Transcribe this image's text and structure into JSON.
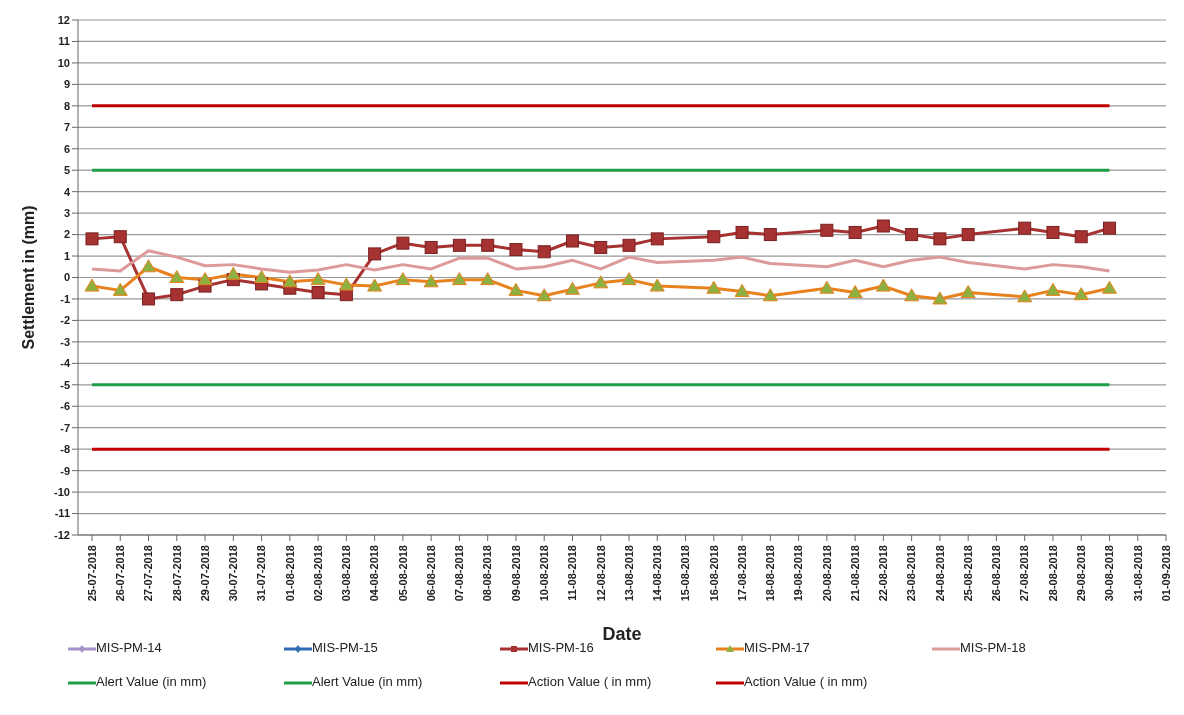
{
  "chart_data": {
    "type": "line",
    "xlabel": "Date",
    "ylabel": "Settlement in (mm)",
    "categories": [
      "25-07-2018",
      "26-07-2018",
      "27-07-2018",
      "28-07-2018",
      "29-07-2018",
      "30-07-2018",
      "31-07-2018",
      "01-08-2018",
      "02-08-2018",
      "03-08-2018",
      "04-08-2018",
      "05-08-2018",
      "06-08-2018",
      "07-08-2018",
      "08-08-2018",
      "09-08-2018",
      "10-08-2018",
      "11-08-2018",
      "12-08-2018",
      "13-08-2018",
      "14-08-2018",
      "15-08-2018",
      "16-08-2018",
      "17-08-2018",
      "18-08-2018",
      "19-08-2018",
      "20-08-2018",
      "21-08-2018",
      "22-08-2018",
      "23-08-2018",
      "24-08-2018",
      "25-08-2018",
      "26-08-2018",
      "27-08-2018",
      "28-08-2018",
      "29-08-2018",
      "30-08-2018",
      "31-08-2018",
      "01-09-2018"
    ],
    "ylim": [
      -12,
      12
    ],
    "yticks": [
      -12,
      -11,
      -10,
      -9,
      -8,
      -7,
      -6,
      -5,
      -4,
      -3,
      -2,
      -1,
      0,
      1,
      2,
      3,
      4,
      5,
      6,
      7,
      8,
      9,
      10,
      11,
      12
    ],
    "grid": "y",
    "legend": "bottom",
    "line_style": "solid",
    "series": [
      {
        "name": "MIS-PM-14",
        "color": "#a393c9",
        "marker": "diamond",
        "values": [
          null,
          null,
          null,
          null,
          null,
          null,
          null,
          null,
          null,
          null,
          null,
          null,
          null,
          null,
          null,
          null,
          null,
          null,
          null,
          null,
          null,
          null,
          null,
          null,
          null,
          null,
          null,
          null,
          null,
          null,
          null,
          null,
          null,
          null,
          null,
          null,
          null,
          null,
          null
        ]
      },
      {
        "name": "MIS-PM-15",
        "color": "#2e6db4",
        "marker": "diamond",
        "values": [
          null,
          null,
          null,
          null,
          null,
          null,
          null,
          null,
          null,
          null,
          null,
          null,
          null,
          null,
          null,
          null,
          null,
          null,
          null,
          null,
          null,
          null,
          null,
          null,
          null,
          null,
          null,
          null,
          null,
          null,
          null,
          null,
          null,
          null,
          null,
          null,
          null,
          null,
          null
        ]
      },
      {
        "name": "MIS-PM-16",
        "color": "#a63232",
        "marker": "square",
        "values": [
          1.8,
          1.9,
          -1.0,
          -0.8,
          -0.4,
          -0.1,
          -0.3,
          -0.5,
          -0.7,
          -0.8,
          1.1,
          1.6,
          1.4,
          1.5,
          1.5,
          1.3,
          1.2,
          1.7,
          1.4,
          1.5,
          1.8,
          null,
          1.9,
          2.1,
          2.0,
          null,
          2.2,
          2.1,
          2.4,
          2.0,
          1.8,
          2.0,
          null,
          2.3,
          2.1,
          1.9,
          2.3,
          null,
          null
        ]
      },
      {
        "name": "MIS-PM-17",
        "color": "#e8821e",
        "marker": "triangle",
        "values": [
          -0.4,
          -0.6,
          0.5,
          0.0,
          -0.1,
          0.15,
          0.0,
          -0.2,
          -0.1,
          -0.35,
          -0.4,
          -0.1,
          -0.2,
          -0.1,
          -0.1,
          -0.6,
          -0.85,
          -0.55,
          -0.25,
          -0.1,
          -0.4,
          null,
          -0.5,
          -0.65,
          -0.85,
          null,
          -0.5,
          -0.7,
          -0.4,
          -0.85,
          -1.0,
          -0.7,
          null,
          -0.9,
          -0.6,
          -0.8,
          -0.5,
          null,
          null
        ]
      },
      {
        "name": "MIS-PM-18",
        "color": "#dc9a9a",
        "marker": "none",
        "values": [
          0.4,
          0.3,
          1.25,
          0.95,
          0.55,
          0.6,
          0.4,
          0.25,
          0.35,
          0.6,
          0.35,
          0.6,
          0.4,
          0.9,
          0.9,
          0.4,
          0.5,
          0.8,
          0.4,
          0.95,
          0.7,
          null,
          0.8,
          0.95,
          0.65,
          null,
          0.5,
          0.8,
          0.5,
          0.8,
          0.95,
          0.7,
          null,
          0.4,
          0.6,
          0.5,
          0.3,
          null,
          null
        ]
      },
      {
        "name": "Alert Value (in mm)",
        "color": "#1f9e4a",
        "marker": "none",
        "values": [
          5,
          5,
          5,
          5,
          5,
          5,
          5,
          5,
          5,
          5,
          5,
          5,
          5,
          5,
          5,
          5,
          5,
          5,
          5,
          5,
          5,
          5,
          5,
          5,
          5,
          5,
          5,
          5,
          5,
          5,
          5,
          5,
          5,
          5,
          5,
          5,
          5,
          null,
          null
        ]
      },
      {
        "name": "Alert Value (in mm)",
        "color": "#1f9e4a",
        "marker": "none",
        "values": [
          -5,
          -5,
          -5,
          -5,
          -5,
          -5,
          -5,
          -5,
          -5,
          -5,
          -5,
          -5,
          -5,
          -5,
          -5,
          -5,
          -5,
          -5,
          -5,
          -5,
          -5,
          -5,
          -5,
          -5,
          -5,
          -5,
          -5,
          -5,
          -5,
          -5,
          -5,
          -5,
          -5,
          -5,
          -5,
          -5,
          -5,
          null,
          null
        ]
      },
      {
        "name": "Action Value ( in mm)",
        "color": "#c00000",
        "marker": "none",
        "values": [
          8,
          8,
          8,
          8,
          8,
          8,
          8,
          8,
          8,
          8,
          8,
          8,
          8,
          8,
          8,
          8,
          8,
          8,
          8,
          8,
          8,
          8,
          8,
          8,
          8,
          8,
          8,
          8,
          8,
          8,
          8,
          8,
          8,
          8,
          8,
          8,
          8,
          null,
          null
        ]
      },
      {
        "name": "Action Value ( in mm)",
        "color": "#c00000",
        "marker": "none",
        "values": [
          -8,
          -8,
          -8,
          -8,
          -8,
          -8,
          -8,
          -8,
          -8,
          -8,
          -8,
          -8,
          -8,
          -8,
          -8,
          -8,
          -8,
          -8,
          -8,
          -8,
          -8,
          -8,
          -8,
          -8,
          -8,
          -8,
          -8,
          -8,
          -8,
          -8,
          -8,
          -8,
          -8,
          -8,
          -8,
          -8,
          -8,
          null,
          null
        ]
      }
    ]
  }
}
